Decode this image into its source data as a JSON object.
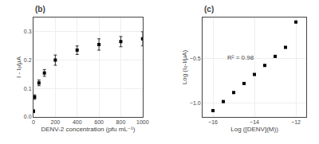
{
  "chart_data": [
    {
      "type": "scatter",
      "title": "(b)",
      "xlabel": "DENV-2 concentration (pfu mL⁻¹)",
      "ylabel": "I - I₀/μA",
      "x": [
        0,
        10,
        50,
        100,
        200,
        400,
        600,
        800,
        1000
      ],
      "values": [
        0.02,
        0.07,
        0.12,
        0.155,
        0.2,
        0.235,
        0.255,
        0.265,
        0.275
      ],
      "y_err": [
        0.005,
        0.008,
        0.01,
        0.012,
        0.018,
        0.015,
        0.02,
        0.018,
        0.025
      ],
      "xlim": [
        0,
        1000
      ],
      "ylim": [
        0,
        0.35
      ],
      "xticks": [
        0,
        200,
        400,
        600,
        800,
        1000
      ],
      "yticks": [
        {
          "value": 0.0,
          "label": "0.0"
        },
        0.1,
        0.2,
        0.3
      ],
      "color": "#000000",
      "marker": "square"
    },
    {
      "type": "scatter",
      "title": "(c)",
      "xlabel": "Log ([DENV](M))",
      "ylabel": "Log (I₀-I/μA)",
      "x": [
        -16.0,
        -15.5,
        -15.0,
        -14.5,
        -14.0,
        -13.5,
        -13.0,
        -12.5,
        -12.0
      ],
      "values": [
        -1.08,
        -0.98,
        -0.88,
        -0.78,
        -0.68,
        -0.58,
        -0.48,
        -0.38,
        -0.1
      ],
      "xlim": [
        -16.5,
        -11.5
      ],
      "ylim": [
        -1.15,
        -0.05
      ],
      "xticks": [
        {
          "value": -16,
          "label": "−16"
        },
        {
          "value": -14,
          "label": "−14"
        },
        {
          "value": -12,
          "label": "−12"
        }
      ],
      "yticks": [
        {
          "value": -1.0,
          "label": "−1.0"
        },
        {
          "value": -0.5,
          "label": "−0.5"
        }
      ],
      "annotation": "R² = 0.98",
      "color": "#000000",
      "marker": "square"
    }
  ]
}
